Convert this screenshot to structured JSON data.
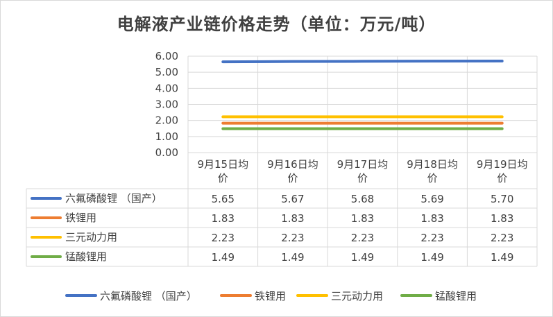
{
  "chart_data": {
    "type": "line",
    "title": "电解液产业链价格走势（单位：万元/吨）",
    "categories": [
      "9月15日均价",
      "9月16日均价",
      "9月17日均价",
      "9月18日均价",
      "9月19日均价"
    ],
    "category_lines": [
      [
        "9月15日均",
        "价"
      ],
      [
        "9月16日均",
        "价"
      ],
      [
        "9月17日均",
        "价"
      ],
      [
        "9月18日均",
        "价"
      ],
      [
        "9月19日均",
        "价"
      ]
    ],
    "ylim": [
      0,
      6
    ],
    "yticks": [
      "0.00",
      "1.00",
      "2.00",
      "3.00",
      "4.00",
      "5.00",
      "6.00"
    ],
    "grid": true,
    "legend_position": "bottom",
    "data_table": true,
    "series": [
      {
        "name": "六氟磷酸锂 （国产）",
        "color": "#4472c4",
        "values": [
          5.65,
          5.67,
          5.68,
          5.69,
          5.7
        ],
        "labels": [
          "5.65",
          "5.67",
          "5.68",
          "5.69",
          "5.70"
        ]
      },
      {
        "name": "铁锂用",
        "color": "#ed7d31",
        "values": [
          1.83,
          1.83,
          1.83,
          1.83,
          1.83
        ],
        "labels": [
          "1.83",
          "1.83",
          "1.83",
          "1.83",
          "1.83"
        ]
      },
      {
        "name": "三元动力用",
        "color": "#ffc000",
        "values": [
          2.23,
          2.23,
          2.23,
          2.23,
          2.23
        ],
        "labels": [
          "2.23",
          "2.23",
          "2.23",
          "2.23",
          "2.23"
        ]
      },
      {
        "name": "锰酸锂用",
        "color": "#70ad47",
        "values": [
          1.49,
          1.49,
          1.49,
          1.49,
          1.49
        ],
        "labels": [
          "1.49",
          "1.49",
          "1.49",
          "1.49",
          "1.49"
        ]
      }
    ]
  }
}
